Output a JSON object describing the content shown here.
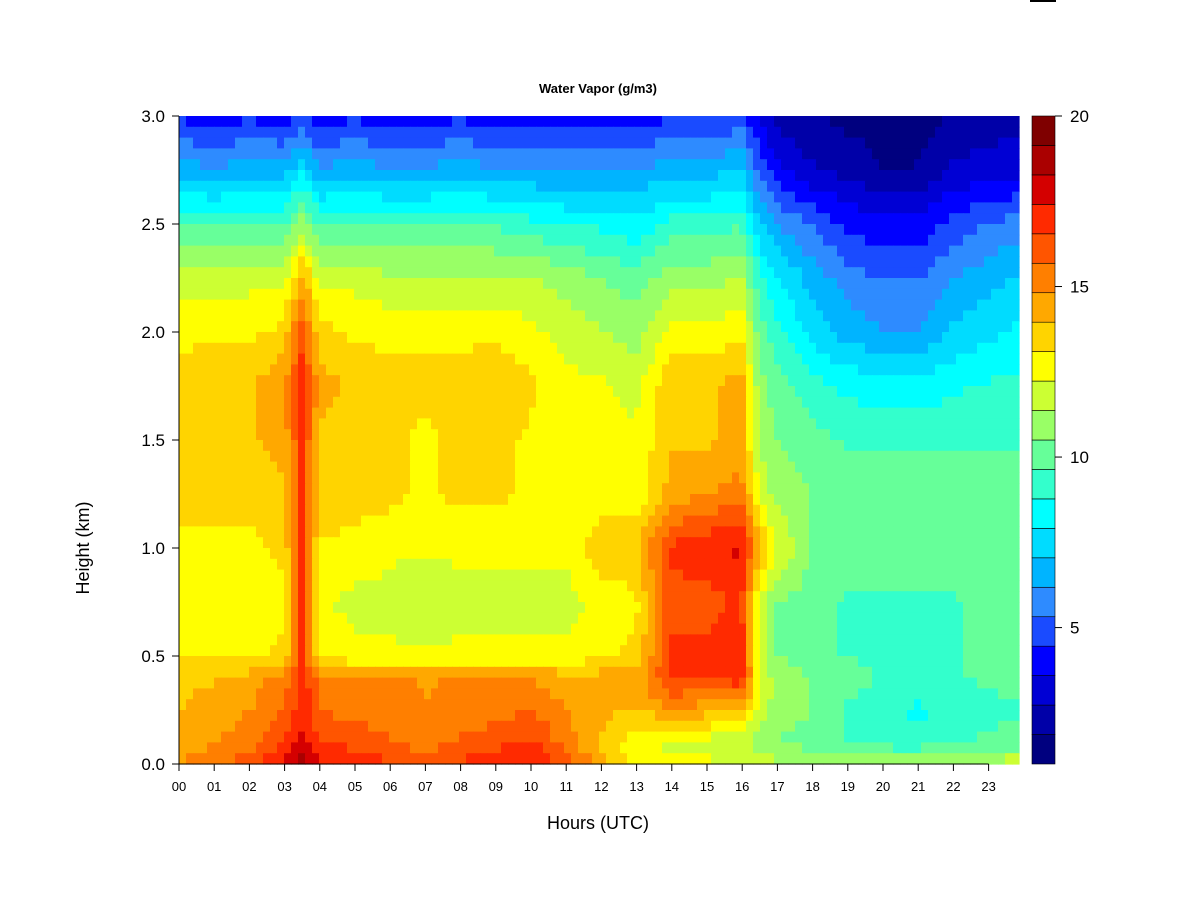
{
  "chart_data": {
    "type": "heatmap",
    "title": "Water Vapor (g/m3)",
    "xlabel": "Hours (UTC)",
    "ylabel": "Height (km)",
    "x_ticks": [
      "00",
      "01",
      "02",
      "03",
      "04",
      "05",
      "06",
      "07",
      "08",
      "09",
      "10",
      "11",
      "12",
      "13",
      "14",
      "15",
      "16",
      "17",
      "18",
      "19",
      "20",
      "21",
      "22",
      "23"
    ],
    "xlim": [
      0,
      23.9
    ],
    "y_ticks": [
      "0.0",
      "0.5",
      "1.0",
      "1.5",
      "2.0",
      "2.5",
      "3.0"
    ],
    "ylim": [
      0,
      3.0
    ],
    "colorbar": {
      "min": 1,
      "max": 20,
      "step": 1,
      "tick_labels": [
        "5",
        "10",
        "15",
        "20"
      ],
      "tick_values": [
        5,
        10,
        15,
        20
      ],
      "colors": [
        "#00007F",
        "#0000A8",
        "#0000D4",
        "#0000FF",
        "#1A4BFF",
        "#2E8BFF",
        "#00B4FF",
        "#00DCFF",
        "#00FFFF",
        "#33FFCC",
        "#66FF99",
        "#99FF66",
        "#CCFF33",
        "#FFFF00",
        "#FFD400",
        "#FFA800",
        "#FF7F00",
        "#FF5500",
        "#FF2A00",
        "#D40000",
        "#AA0000",
        "#7F0000"
      ]
    },
    "heights": [
      0.0,
      0.1,
      0.25,
      0.4,
      0.5,
      0.75,
      1.0,
      1.25,
      1.5,
      1.75,
      2.0,
      2.25,
      2.5,
      2.75,
      3.0
    ],
    "hours": [
      0,
      1,
      2,
      3,
      3.5,
      4,
      5,
      6,
      7,
      8,
      9,
      10,
      11,
      12,
      13,
      14,
      15,
      16,
      16.5,
      17,
      18,
      19,
      20,
      21,
      22,
      23.9
    ],
    "values": [
      [
        15.0,
        15.5,
        16.5,
        18.0,
        19.0,
        18.0,
        17.5,
        17.0,
        16.5,
        17.0,
        17.5,
        18.0,
        16.5,
        14.5,
        13.0,
        13.0,
        12.5,
        12.0,
        12.0,
        11.5,
        11.5,
        11.5,
        11.5,
        11.0,
        11.5,
        12.0
      ],
      [
        14.5,
        15.0,
        15.5,
        17.0,
        18.0,
        17.0,
        16.5,
        16.0,
        15.5,
        16.0,
        16.5,
        17.0,
        15.5,
        14.0,
        12.5,
        12.0,
        12.0,
        11.5,
        11.0,
        10.5,
        10.0,
        9.5,
        9.0,
        9.0,
        9.5,
        10.0
      ],
      [
        14.0,
        14.5,
        15.0,
        16.0,
        17.5,
        16.0,
        15.5,
        15.5,
        15.0,
        15.5,
        15.5,
        16.0,
        15.0,
        14.5,
        14.0,
        15.0,
        14.5,
        14.0,
        12.0,
        11.0,
        10.5,
        9.5,
        9.0,
        8.5,
        9.0,
        9.5
      ],
      [
        14.0,
        14.0,
        14.5,
        15.5,
        17.5,
        15.5,
        15.0,
        15.0,
        15.0,
        15.0,
        15.0,
        15.0,
        14.5,
        14.5,
        14.5,
        17.0,
        17.0,
        17.5,
        12.5,
        11.0,
        10.5,
        10.0,
        9.5,
        9.5,
        9.5,
        10.0
      ],
      [
        13.0,
        13.0,
        13.0,
        13.5,
        17.0,
        13.0,
        12.5,
        12.5,
        12.5,
        12.5,
        12.5,
        12.5,
        12.5,
        13.0,
        13.5,
        17.0,
        17.0,
        17.5,
        12.0,
        10.5,
        10.0,
        9.5,
        9.5,
        9.5,
        9.5,
        10.0
      ],
      [
        12.5,
        12.5,
        12.5,
        13.0,
        17.0,
        12.5,
        12.0,
        12.0,
        11.5,
        12.0,
        12.0,
        12.0,
        12.0,
        12.5,
        13.0,
        16.5,
        16.5,
        17.0,
        12.0,
        10.5,
        10.0,
        9.5,
        9.5,
        9.5,
        9.5,
        10.0
      ],
      [
        13.0,
        13.0,
        13.0,
        13.5,
        17.0,
        13.0,
        13.0,
        12.5,
        12.5,
        12.5,
        12.5,
        12.5,
        12.5,
        14.0,
        14.0,
        17.0,
        17.5,
        18.0,
        14.5,
        12.5,
        10.5,
        10.0,
        10.0,
        10.0,
        10.0,
        10.0
      ],
      [
        13.5,
        13.5,
        13.5,
        14.0,
        17.0,
        14.0,
        13.5,
        13.5,
        13.0,
        13.5,
        13.5,
        13.0,
        12.5,
        12.5,
        12.5,
        14.5,
        15.0,
        15.5,
        12.0,
        11.0,
        10.5,
        10.0,
        10.0,
        10.0,
        10.0,
        10.0
      ],
      [
        13.5,
        13.5,
        14.0,
        14.5,
        17.0,
        14.0,
        13.5,
        13.5,
        13.0,
        13.5,
        13.5,
        13.0,
        12.5,
        12.5,
        12.5,
        14.0,
        14.0,
        14.5,
        11.5,
        10.5,
        10.0,
        9.5,
        9.5,
        9.5,
        9.5,
        9.5
      ],
      [
        13.5,
        14.0,
        14.0,
        15.0,
        17.5,
        14.5,
        14.0,
        13.5,
        13.5,
        13.5,
        14.0,
        13.5,
        12.5,
        12.5,
        12.0,
        14.0,
        14.0,
        14.5,
        11.0,
        10.0,
        9.0,
        8.5,
        8.0,
        8.0,
        8.5,
        9.0
      ],
      [
        13.0,
        13.0,
        13.0,
        13.5,
        16.5,
        13.5,
        13.0,
        13.0,
        13.0,
        13.0,
        13.0,
        12.5,
        12.0,
        11.5,
        11.0,
        12.5,
        12.5,
        13.0,
        10.0,
        9.0,
        7.5,
        6.5,
        6.0,
        6.0,
        7.0,
        8.0
      ],
      [
        12.0,
        12.0,
        12.0,
        12.0,
        14.5,
        12.0,
        12.0,
        11.5,
        11.5,
        11.5,
        11.5,
        11.5,
        11.0,
        10.5,
        10.0,
        11.0,
        11.0,
        11.5,
        9.0,
        8.0,
        6.5,
        5.5,
        5.0,
        5.0,
        6.0,
        7.0
      ],
      [
        9.5,
        9.5,
        9.5,
        9.5,
        11.0,
        9.5,
        9.5,
        9.5,
        9.5,
        9.5,
        9.5,
        9.0,
        8.5,
        8.5,
        8.0,
        9.0,
        9.0,
        9.5,
        7.0,
        6.0,
        5.0,
        4.0,
        3.5,
        3.5,
        4.5,
        5.5
      ],
      [
        6.5,
        6.0,
        6.5,
        6.5,
        7.5,
        6.0,
        6.5,
        6.0,
        6.0,
        6.5,
        6.0,
        6.0,
        6.0,
        6.0,
        6.0,
        6.5,
        6.5,
        7.0,
        5.0,
        3.5,
        2.5,
        2.0,
        1.5,
        1.5,
        2.5,
        3.0
      ],
      [
        4.0,
        3.5,
        4.0,
        3.5,
        4.5,
        3.5,
        4.0,
        3.5,
        3.5,
        4.0,
        3.5,
        3.5,
        3.5,
        3.5,
        3.5,
        4.0,
        4.0,
        4.5,
        3.0,
        2.0,
        1.5,
        1.2,
        1.0,
        1.0,
        1.5,
        2.0
      ]
    ]
  }
}
